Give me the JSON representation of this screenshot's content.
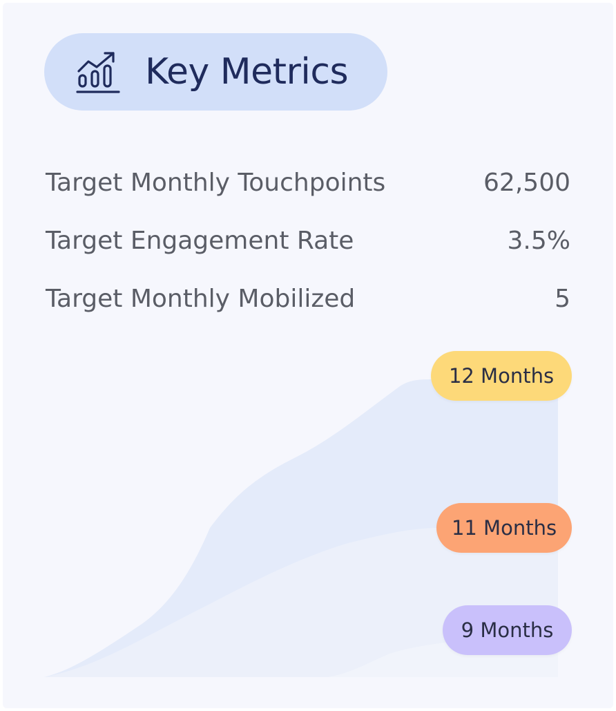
{
  "header": {
    "title": "Key Metrics",
    "icon": "growth-chart-icon"
  },
  "metrics": [
    {
      "label": "Target Monthly Touchpoints",
      "value": "62,500"
    },
    {
      "label": "Target Engagement Rate",
      "value": "3.5%"
    },
    {
      "label": "Target Monthly Mobilized",
      "value": "5"
    }
  ],
  "timeline": {
    "badges": [
      {
        "label": "12 Months",
        "color": "#fdd979"
      },
      {
        "label": "11 Months",
        "color": "#fca474"
      },
      {
        "label": "9 Months",
        "color": "#c9c0fb"
      }
    ],
    "area_colors": [
      "#e4ebfa",
      "#ecf0fa",
      "#f1f4fb"
    ]
  },
  "colors": {
    "card_background": "#f6f7fd",
    "title_pill": "#d2dff9",
    "title_text": "#1f2b5c",
    "metric_text": "#5a5d66"
  }
}
